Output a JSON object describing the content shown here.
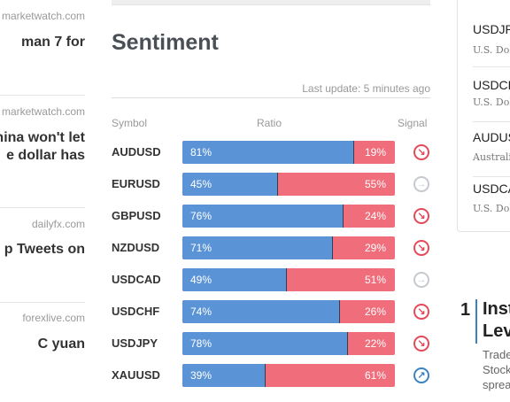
{
  "news": [
    {
      "source": "marketwatch.com",
      "title_lines": [
        "man 7 for",
        ""
      ]
    },
    {
      "source": "marketwatch.com",
      "title_lines": [
        "hina won't let",
        "e dollar has"
      ]
    },
    {
      "source": "dailyfx.com",
      "title_lines": [
        "p Tweets on",
        ""
      ]
    },
    {
      "source": "forexlive.com",
      "title_lines": [
        "C yuan",
        ""
      ]
    }
  ],
  "sentiment": {
    "title": "Sentiment",
    "last_update": "Last update: 5 minutes ago",
    "headers": {
      "symbol": "Symbol",
      "ratio": "Ratio",
      "signal": "Signal"
    },
    "rows": [
      {
        "symbol": "AUDUSD",
        "long": 81,
        "short": 19,
        "long_label": "81%",
        "short_label": "19%",
        "signal": "sell",
        "signal_icon": "sell-arrow-icon"
      },
      {
        "symbol": "EURUSD",
        "long": 45,
        "short": 55,
        "long_label": "45%",
        "short_label": "55%",
        "signal": "neutral",
        "signal_icon": "neutral-arrow-icon"
      },
      {
        "symbol": "GBPUSD",
        "long": 76,
        "short": 24,
        "long_label": "76%",
        "short_label": "24%",
        "signal": "sell",
        "signal_icon": "sell-arrow-icon"
      },
      {
        "symbol": "NZDUSD",
        "long": 71,
        "short": 29,
        "long_label": "71%",
        "short_label": "29%",
        "signal": "sell",
        "signal_icon": "sell-arrow-icon"
      },
      {
        "symbol": "USDCAD",
        "long": 49,
        "short": 51,
        "long_label": "49%",
        "short_label": "51%",
        "signal": "neutral",
        "signal_icon": "neutral-arrow-icon"
      },
      {
        "symbol": "USDCHF",
        "long": 74,
        "short": 26,
        "long_label": "74%",
        "short_label": "26%",
        "signal": "sell",
        "signal_icon": "sell-arrow-icon"
      },
      {
        "symbol": "USDJPY",
        "long": 78,
        "short": 22,
        "long_label": "78%",
        "short_label": "22%",
        "signal": "sell",
        "signal_icon": "sell-arrow-icon"
      },
      {
        "symbol": "XAUUSD",
        "long": 39,
        "short": 61,
        "long_label": "39%",
        "short_label": "61%",
        "signal": "buy",
        "signal_icon": "buy-arrow-icon"
      }
    ],
    "colors": {
      "long": "#5b94d6",
      "short": "#f06d7b",
      "sell": "#e5495a",
      "buy": "#3b82c4",
      "neutral": "#c5cad0"
    }
  },
  "pairs": [
    {
      "symbol": "USDJP",
      "name": "U.S. Dol"
    },
    {
      "symbol": "USDCH",
      "name": "U.S. Dol"
    },
    {
      "symbol": "AUDUS",
      "name": "Australi"
    },
    {
      "symbol": "USDCA",
      "name": "U.S. Dol"
    }
  ],
  "ranked": {
    "number": "1",
    "title_lines": [
      "Inst",
      "Lev"
    ],
    "desc_lines": [
      "Trade",
      "Stock",
      "sprea"
    ]
  }
}
